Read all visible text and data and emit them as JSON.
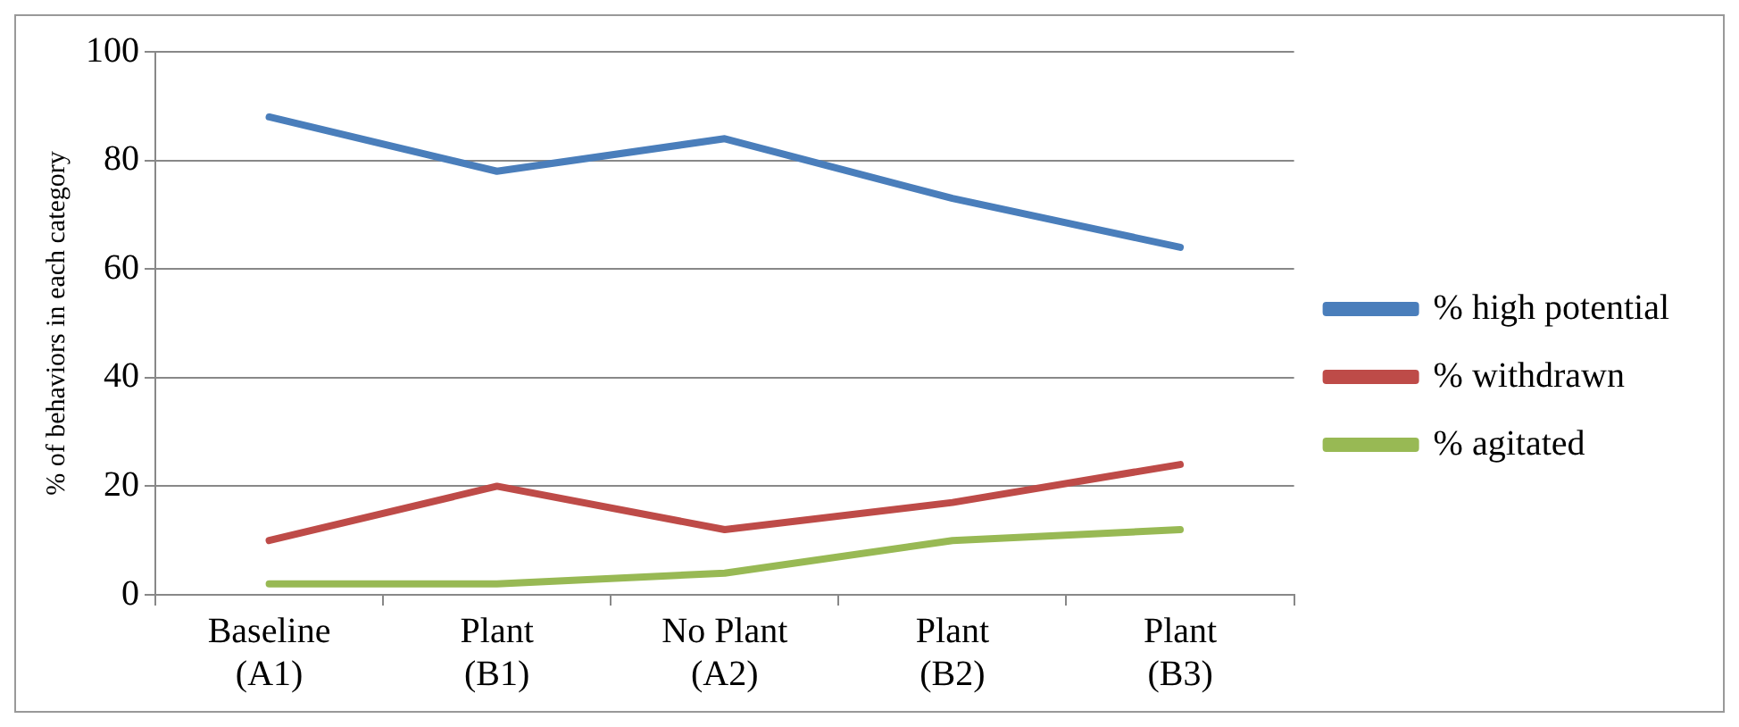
{
  "chart_data": {
    "type": "line",
    "ylabel": "% of behaviors in each category",
    "categories": [
      "Baseline (A1)",
      "Plant (B1)",
      "No Plant (A2)",
      "Plant (B2)",
      "Plant (B3)"
    ],
    "series": [
      {
        "name": "% high potential",
        "color": "#4a7ebb",
        "values": [
          88,
          78,
          84,
          73,
          64
        ]
      },
      {
        "name": "% withdrawn",
        "color": "#be4b48",
        "values": [
          10,
          20,
          12,
          17,
          24
        ]
      },
      {
        "name": "% agitated",
        "color": "#98b954",
        "values": [
          2,
          2,
          4,
          10,
          12
        ]
      }
    ],
    "ylim": [
      0,
      100
    ],
    "yticks": [
      0,
      20,
      40,
      60,
      80,
      100
    ],
    "grid": "y",
    "legend": "right",
    "marker": "none",
    "line_style": "solid"
  }
}
